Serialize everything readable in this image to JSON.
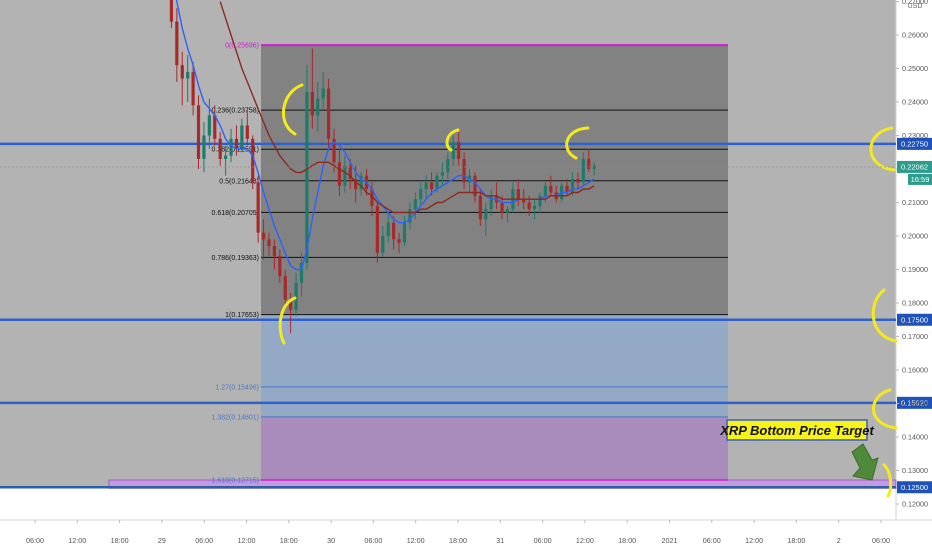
{
  "header": {
    "currency": "USD"
  },
  "chart_data": {
    "type": "candlestick",
    "price_axis": {
      "ylim": [
        0.1155,
        0.2715
      ],
      "ticks": [
        "0.27000",
        "0.26000",
        "0.25000",
        "0.24000",
        "0.23000",
        "0.22000",
        "0.21000",
        "0.20000",
        "0.19000",
        "0.18000",
        "0.17000",
        "0.16000",
        "0.15000",
        "0.14000",
        "0.13000",
        "0.12000"
      ],
      "tick_values": [
        0.27,
        0.26,
        0.25,
        0.24,
        0.23,
        0.22,
        0.21,
        0.2,
        0.19,
        0.18,
        0.17,
        0.16,
        0.15,
        0.14,
        0.13,
        0.12
      ],
      "current_price": {
        "label": "0.22062",
        "value": 0.22062,
        "countdown": "16:59"
      }
    },
    "time_axis": {
      "labels": [
        "06:00",
        "12:00",
        "18:00",
        "29",
        "06:00",
        "12:00",
        "18:00",
        "30",
        "06:00",
        "12:00",
        "18:00",
        "31",
        "06:00",
        "12:00",
        "18:00",
        "2021",
        "06:00",
        "12:00",
        "18:00",
        "2",
        "06:00"
      ]
    },
    "horizontal_levels": [
      {
        "label": "0.22750",
        "value": 0.2275
      },
      {
        "label": "0.17500",
        "value": 0.175
      },
      {
        "label": "0.15020",
        "value": 0.1502
      },
      {
        "label": "0.12500",
        "value": 0.125
      }
    ],
    "fib_levels": [
      {
        "label": "0(0.25696)",
        "value": 0.25696
      },
      {
        "label": "0.236(0.23758)",
        "value": 0.23758
      },
      {
        "label": "0.382(0.22591)",
        "value": 0.22591
      },
      {
        "label": "0.5(0.21648)",
        "value": 0.21648
      },
      {
        "label": "0.618(0.20705)",
        "value": 0.20705
      },
      {
        "label": "0.786(0.19363)",
        "value": 0.19363
      },
      {
        "label": "1(0.17653)",
        "value": 0.17653
      },
      {
        "label": "1.27(0.15496)",
        "value": 0.15496
      },
      {
        "label": "1.382(0.14601)",
        "value": 0.14601
      },
      {
        "label": "1.618(0.12715)",
        "value": 0.12715
      }
    ],
    "annotation": {
      "text": "XRP Bottom Price Target"
    },
    "candles": [
      [
        0.284,
        0.288,
        0.276,
        0.28
      ],
      [
        0.28,
        0.282,
        0.262,
        0.264
      ],
      [
        0.264,
        0.268,
        0.246,
        0.251
      ],
      [
        0.251,
        0.255,
        0.239,
        0.247
      ],
      [
        0.247,
        0.254,
        0.24,
        0.249
      ],
      [
        0.249,
        0.252,
        0.236,
        0.239
      ],
      [
        0.239,
        0.242,
        0.22,
        0.223
      ],
      [
        0.223,
        0.234,
        0.219,
        0.23
      ],
      [
        0.23,
        0.241,
        0.226,
        0.236
      ],
      [
        0.236,
        0.239,
        0.227,
        0.229
      ],
      [
        0.229,
        0.231,
        0.221,
        0.223
      ],
      [
        0.223,
        0.227,
        0.218,
        0.224
      ],
      [
        0.224,
        0.232,
        0.222,
        0.229
      ],
      [
        0.229,
        0.233,
        0.224,
        0.226
      ],
      [
        0.226,
        0.235,
        0.225,
        0.233
      ],
      [
        0.233,
        0.238,
        0.227,
        0.229
      ],
      [
        0.229,
        0.23,
        0.214,
        0.216
      ],
      [
        0.216,
        0.218,
        0.198,
        0.201
      ],
      [
        0.201,
        0.205,
        0.193,
        0.199
      ],
      [
        0.199,
        0.201,
        0.194,
        0.197
      ],
      [
        0.197,
        0.199,
        0.19,
        0.194
      ],
      [
        0.194,
        0.196,
        0.186,
        0.188
      ],
      [
        0.188,
        0.19,
        0.179,
        0.181
      ],
      [
        0.181,
        0.183,
        0.171,
        0.178
      ],
      [
        0.178,
        0.189,
        0.176,
        0.186
      ],
      [
        0.186,
        0.195,
        0.182,
        0.192
      ],
      [
        0.192,
        0.251,
        0.19,
        0.243
      ],
      [
        0.243,
        0.256,
        0.232,
        0.236
      ],
      [
        0.236,
        0.246,
        0.231,
        0.241
      ],
      [
        0.241,
        0.249,
        0.238,
        0.244
      ],
      [
        0.244,
        0.247,
        0.226,
        0.229
      ],
      [
        0.229,
        0.232,
        0.219,
        0.222
      ],
      [
        0.222,
        0.226,
        0.212,
        0.215
      ],
      [
        0.215,
        0.224,
        0.213,
        0.221
      ],
      [
        0.221,
        0.223,
        0.214,
        0.217
      ],
      [
        0.217,
        0.221,
        0.21,
        0.214
      ],
      [
        0.214,
        0.219,
        0.212,
        0.218
      ],
      [
        0.218,
        0.22,
        0.212,
        0.214
      ],
      [
        0.214,
        0.216,
        0.206,
        0.209
      ],
      [
        0.209,
        0.21,
        0.192,
        0.195
      ],
      [
        0.195,
        0.203,
        0.194,
        0.2
      ],
      [
        0.2,
        0.207,
        0.198,
        0.204
      ],
      [
        0.204,
        0.206,
        0.196,
        0.199
      ],
      [
        0.199,
        0.201,
        0.195,
        0.198
      ],
      [
        0.198,
        0.206,
        0.197,
        0.204
      ],
      [
        0.204,
        0.21,
        0.202,
        0.208
      ],
      [
        0.208,
        0.213,
        0.205,
        0.211
      ],
      [
        0.211,
        0.216,
        0.209,
        0.214
      ],
      [
        0.214,
        0.218,
        0.211,
        0.216
      ],
      [
        0.216,
        0.219,
        0.212,
        0.214
      ],
      [
        0.214,
        0.219,
        0.213,
        0.218
      ],
      [
        0.218,
        0.222,
        0.215,
        0.219
      ],
      [
        0.219,
        0.225,
        0.217,
        0.223
      ],
      [
        0.223,
        0.23,
        0.221,
        0.228
      ],
      [
        0.228,
        0.231,
        0.221,
        0.223
      ],
      [
        0.223,
        0.225,
        0.214,
        0.216
      ],
      [
        0.216,
        0.22,
        0.213,
        0.218
      ],
      [
        0.218,
        0.219,
        0.21,
        0.212
      ],
      [
        0.212,
        0.214,
        0.203,
        0.205
      ],
      [
        0.205,
        0.21,
        0.2,
        0.208
      ],
      [
        0.208,
        0.214,
        0.206,
        0.212
      ],
      [
        0.212,
        0.216,
        0.208,
        0.21
      ],
      [
        0.21,
        0.212,
        0.205,
        0.207
      ],
      [
        0.207,
        0.209,
        0.204,
        0.208
      ],
      [
        0.208,
        0.216,
        0.207,
        0.214
      ],
      [
        0.214,
        0.217,
        0.209,
        0.211
      ],
      [
        0.211,
        0.214,
        0.208,
        0.21
      ],
      [
        0.21,
        0.212,
        0.206,
        0.208
      ],
      [
        0.208,
        0.211,
        0.205,
        0.209
      ],
      [
        0.209,
        0.213,
        0.207,
        0.212
      ],
      [
        0.212,
        0.216,
        0.21,
        0.215
      ],
      [
        0.215,
        0.218,
        0.212,
        0.213
      ],
      [
        0.213,
        0.215,
        0.21,
        0.211
      ],
      [
        0.211,
        0.216,
        0.21,
        0.215
      ],
      [
        0.215,
        0.217,
        0.212,
        0.213
      ],
      [
        0.213,
        0.219,
        0.212,
        0.217
      ],
      [
        0.217,
        0.219,
        0.214,
        0.216
      ],
      [
        0.216,
        0.225,
        0.215,
        0.223
      ],
      [
        0.223,
        0.226,
        0.219,
        0.22
      ],
      [
        0.22,
        0.222,
        0.218,
        0.221
      ]
    ],
    "moving_averages": [
      {
        "color": "#2962ff",
        "values": [
          0.29,
          0.28,
          0.27,
          0.262,
          0.256,
          0.251,
          0.245,
          0.24,
          0.238,
          0.236,
          0.233,
          0.229,
          0.227,
          0.226,
          0.226,
          0.226,
          0.224,
          0.219,
          0.213,
          0.208,
          0.203,
          0.199,
          0.195,
          0.191,
          0.19,
          0.19,
          0.196,
          0.205,
          0.213,
          0.221,
          0.226,
          0.228,
          0.227,
          0.225,
          0.222,
          0.219,
          0.217,
          0.216,
          0.214,
          0.211,
          0.209,
          0.207,
          0.205,
          0.204,
          0.204,
          0.205,
          0.207,
          0.209,
          0.211,
          0.213,
          0.214,
          0.215,
          0.216,
          0.217,
          0.218,
          0.218,
          0.217,
          0.216,
          0.214,
          0.212,
          0.211,
          0.211,
          0.21,
          0.21,
          0.21,
          0.211,
          0.211,
          0.211,
          0.211,
          0.211,
          0.212,
          0.212,
          0.212,
          0.213,
          0.213,
          0.214,
          0.214,
          0.215,
          0.216,
          0.217
        ]
      },
      {
        "color": "#8b2a20",
        "values": [
          null,
          null,
          null,
          null,
          null,
          null,
          null,
          null,
          null,
          null,
          0.27,
          0.265,
          0.26,
          0.255,
          0.25,
          0.246,
          0.242,
          0.238,
          0.234,
          0.23,
          0.227,
          0.224,
          0.222,
          0.22,
          0.219,
          0.219,
          0.22,
          0.221,
          0.222,
          0.222,
          0.222,
          0.221,
          0.22,
          0.219,
          0.218,
          0.216,
          0.215,
          0.213,
          0.212,
          0.21,
          0.209,
          0.208,
          0.207,
          0.207,
          0.207,
          0.207,
          0.207,
          0.208,
          0.208,
          0.209,
          0.21,
          0.21,
          0.211,
          0.212,
          0.213,
          0.213,
          0.213,
          0.213,
          0.213,
          0.212,
          0.212,
          0.212,
          0.211,
          0.211,
          0.211,
          0.211,
          0.211,
          0.211,
          0.211,
          0.211,
          0.211,
          0.212,
          0.212,
          0.212,
          0.212,
          0.213,
          0.213,
          0.214,
          0.214,
          0.215
        ]
      }
    ],
    "grid": false,
    "legend": "none"
  }
}
